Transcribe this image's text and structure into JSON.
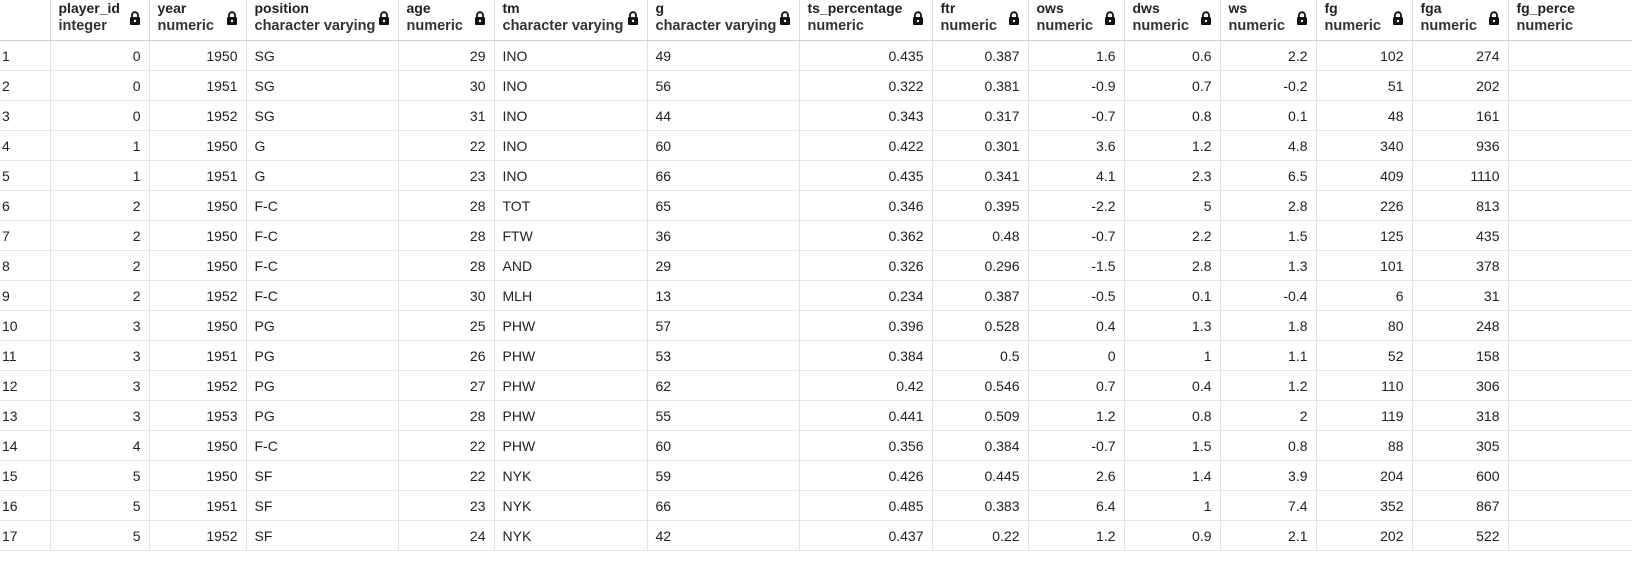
{
  "columns": [
    {
      "name": "player_id",
      "type": "integer",
      "align": "num"
    },
    {
      "name": "year",
      "type": "numeric",
      "align": "num"
    },
    {
      "name": "position",
      "type": "character varying",
      "align": "txt"
    },
    {
      "name": "age",
      "type": "numeric",
      "align": "num"
    },
    {
      "name": "tm",
      "type": "character varying",
      "align": "txt"
    },
    {
      "name": "g",
      "type": "character varying",
      "align": "txt"
    },
    {
      "name": "ts_percentage",
      "type": "numeric",
      "align": "num"
    },
    {
      "name": "ftr",
      "type": "numeric",
      "align": "num"
    },
    {
      "name": "ows",
      "type": "numeric",
      "align": "num"
    },
    {
      "name": "dws",
      "type": "numeric",
      "align": "num"
    },
    {
      "name": "ws",
      "type": "numeric",
      "align": "num"
    },
    {
      "name": "fg",
      "type": "numeric",
      "align": "num"
    },
    {
      "name": "fga",
      "type": "numeric",
      "align": "num"
    },
    {
      "name": "fg_perce",
      "type": "numeric",
      "align": "num"
    }
  ],
  "rows": [
    [
      "1",
      "0",
      "1950",
      "SG",
      "29",
      "INO",
      "49",
      "0.435",
      "0.387",
      "1.6",
      "0.6",
      "2.2",
      "102",
      "274",
      ""
    ],
    [
      "2",
      "0",
      "1951",
      "SG",
      "30",
      "INO",
      "56",
      "0.322",
      "0.381",
      "-0.9",
      "0.7",
      "-0.2",
      "51",
      "202",
      ""
    ],
    [
      "3",
      "0",
      "1952",
      "SG",
      "31",
      "INO",
      "44",
      "0.343",
      "0.317",
      "-0.7",
      "0.8",
      "0.1",
      "48",
      "161",
      ""
    ],
    [
      "4",
      "1",
      "1950",
      "G",
      "22",
      "INO",
      "60",
      "0.422",
      "0.301",
      "3.6",
      "1.2",
      "4.8",
      "340",
      "936",
      ""
    ],
    [
      "5",
      "1",
      "1951",
      "G",
      "23",
      "INO",
      "66",
      "0.435",
      "0.341",
      "4.1",
      "2.3",
      "6.5",
      "409",
      "1110",
      ""
    ],
    [
      "6",
      "2",
      "1950",
      "F-C",
      "28",
      "TOT",
      "65",
      "0.346",
      "0.395",
      "-2.2",
      "5",
      "2.8",
      "226",
      "813",
      ""
    ],
    [
      "7",
      "2",
      "1950",
      "F-C",
      "28",
      "FTW",
      "36",
      "0.362",
      "0.48",
      "-0.7",
      "2.2",
      "1.5",
      "125",
      "435",
      ""
    ],
    [
      "8",
      "2",
      "1950",
      "F-C",
      "28",
      "AND",
      "29",
      "0.326",
      "0.296",
      "-1.5",
      "2.8",
      "1.3",
      "101",
      "378",
      ""
    ],
    [
      "9",
      "2",
      "1952",
      "F-C",
      "30",
      "MLH",
      "13",
      "0.234",
      "0.387",
      "-0.5",
      "0.1",
      "-0.4",
      "6",
      "31",
      ""
    ],
    [
      "10",
      "3",
      "1950",
      "PG",
      "25",
      "PHW",
      "57",
      "0.396",
      "0.528",
      "0.4",
      "1.3",
      "1.8",
      "80",
      "248",
      ""
    ],
    [
      "11",
      "3",
      "1951",
      "PG",
      "26",
      "PHW",
      "53",
      "0.384",
      "0.5",
      "0",
      "1",
      "1.1",
      "52",
      "158",
      ""
    ],
    [
      "12",
      "3",
      "1952",
      "PG",
      "27",
      "PHW",
      "62",
      "0.42",
      "0.546",
      "0.7",
      "0.4",
      "1.2",
      "110",
      "306",
      ""
    ],
    [
      "13",
      "3",
      "1953",
      "PG",
      "28",
      "PHW",
      "55",
      "0.441",
      "0.509",
      "1.2",
      "0.8",
      "2",
      "119",
      "318",
      ""
    ],
    [
      "14",
      "4",
      "1950",
      "F-C",
      "22",
      "PHW",
      "60",
      "0.356",
      "0.384",
      "-0.7",
      "1.5",
      "0.8",
      "88",
      "305",
      ""
    ],
    [
      "15",
      "5",
      "1950",
      "SF",
      "22",
      "NYK",
      "59",
      "0.426",
      "0.445",
      "2.6",
      "1.4",
      "3.9",
      "204",
      "600",
      ""
    ],
    [
      "16",
      "5",
      "1951",
      "SF",
      "23",
      "NYK",
      "66",
      "0.485",
      "0.383",
      "6.4",
      "1",
      "7.4",
      "352",
      "867",
      ""
    ],
    [
      "17",
      "5",
      "1952",
      "SF",
      "24",
      "NYK",
      "42",
      "0.437",
      "0.22",
      "1.2",
      "0.9",
      "2.1",
      "202",
      "522",
      ""
    ]
  ]
}
